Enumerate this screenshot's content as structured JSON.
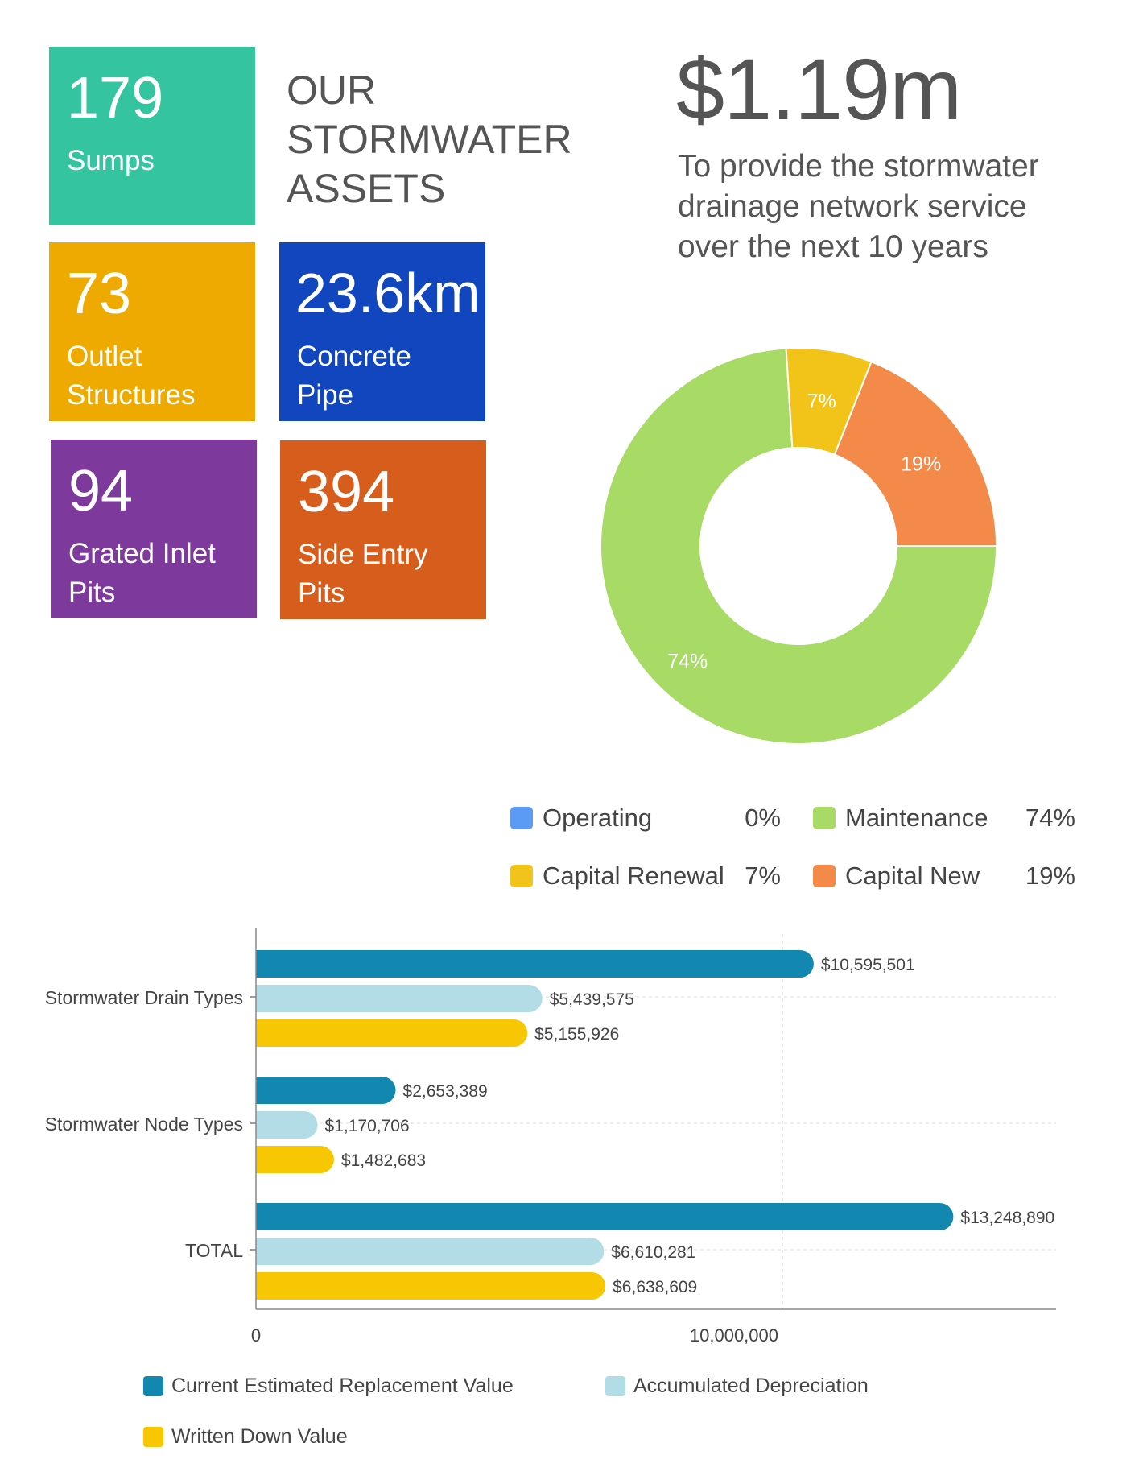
{
  "tiles": {
    "sumps": {
      "number": "179",
      "label": "Sumps",
      "color": "#35c4a0"
    },
    "outlet": {
      "number": "73",
      "label": "Outlet Structures",
      "color": "#eeaa00"
    },
    "pipe": {
      "number": "23.6km",
      "label": "Concrete Pipe",
      "color": "#1146bf"
    },
    "grated": {
      "number": "94",
      "label": "Grated Inlet Pits",
      "color": "#7e399d"
    },
    "side": {
      "number": "394",
      "label": "Side Entry Pits",
      "color": "#d65d1b"
    }
  },
  "title": "OUR STORMWATER ASSETS",
  "headline": "$1.19m",
  "subtitle": "To provide the stormwater drainage network service over the next 10 years",
  "chart_data": [
    {
      "type": "pie",
      "donut": true,
      "slices": [
        {
          "name": "Operating",
          "value": 0,
          "label": "0%",
          "color": "#5b9bf5"
        },
        {
          "name": "Maintenance",
          "value": 74,
          "label": "74%",
          "color": "#a8da66"
        },
        {
          "name": "Capital Renewal",
          "value": 7,
          "label": "7%",
          "color": "#f2c318"
        },
        {
          "name": "Capital New",
          "value": 19,
          "label": "19%",
          "color": "#f48a4a"
        }
      ],
      "legend": [
        {
          "name": "Operating",
          "pct": "0%",
          "color": "#5b9bf5"
        },
        {
          "name": "Maintenance",
          "pct": "74%",
          "color": "#a8da66"
        },
        {
          "name": "Capital Renewal",
          "pct": "7%",
          "color": "#f2c318"
        },
        {
          "name": "Capital New",
          "pct": "19%",
          "color": "#f48a4a"
        }
      ],
      "legend_placement": "bottom"
    },
    {
      "type": "bar",
      "orientation": "horizontal",
      "categories": [
        "Stormwater Drain Types",
        "Stormwater Node Types",
        "TOTAL"
      ],
      "series": [
        {
          "name": "Current Estimated Replacement Value",
          "color": "#1288b0",
          "values": [
            10595501,
            2653389,
            13248890
          ],
          "labels": [
            "$10,595,501",
            "$2,653,389",
            "$13,248,890"
          ]
        },
        {
          "name": "Accumulated Depreciation",
          "color": "#b2dde6",
          "values": [
            5439575,
            1170706,
            6610281
          ],
          "labels": [
            "$5,439,575",
            "$1,170,706",
            "$6,610,281"
          ]
        },
        {
          "name": "Written Down Value",
          "color": "#f8c703",
          "values": [
            5155926,
            1482683,
            6638609
          ],
          "labels": [
            "$5,155,926",
            "$1,482,683",
            "$6,638,609"
          ]
        }
      ],
      "x_ticks": [
        "0",
        "10,000,000"
      ],
      "xlim": [
        0,
        15200000
      ],
      "grid": true,
      "legend_placement": "bottom"
    }
  ]
}
